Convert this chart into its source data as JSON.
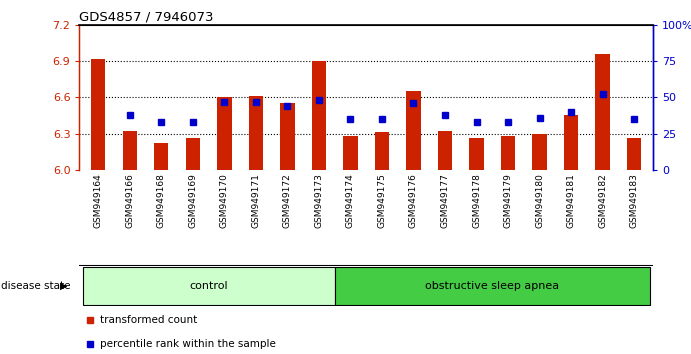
{
  "title": "GDS4857 / 7946073",
  "samples": [
    "GSM949164",
    "GSM949166",
    "GSM949168",
    "GSM949169",
    "GSM949170",
    "GSM949171",
    "GSM949172",
    "GSM949173",
    "GSM949174",
    "GSM949175",
    "GSM949176",
    "GSM949177",
    "GSM949178",
    "GSM949179",
    "GSM949180",
    "GSM949181",
    "GSM949182",
    "GSM949183"
  ],
  "bar_values": [
    6.92,
    6.32,
    6.22,
    6.26,
    6.6,
    6.61,
    6.55,
    6.9,
    6.28,
    6.31,
    6.65,
    6.32,
    6.26,
    6.28,
    6.3,
    6.45,
    6.96,
    6.26
  ],
  "percentile_pct": [
    null,
    38,
    33,
    33,
    47,
    47,
    44,
    48,
    35,
    35,
    46,
    38,
    33,
    33,
    36,
    40,
    52,
    35
  ],
  "ylim": [
    6.0,
    7.2
  ],
  "yticks_left": [
    6.0,
    6.3,
    6.6,
    6.9,
    7.2
  ],
  "yticks_right": [
    0,
    25,
    50,
    75,
    100
  ],
  "bar_color": "#cc2200",
  "square_color": "#0000cc",
  "groups": [
    {
      "label": "control",
      "start": 0,
      "end": 8,
      "color": "#ccffcc"
    },
    {
      "label": "obstructive sleep apnea",
      "start": 8,
      "end": 18,
      "color": "#44cc44"
    }
  ],
  "legend": [
    {
      "label": "transformed count",
      "color": "#cc2200"
    },
    {
      "label": "percentile rank within the sample",
      "color": "#0000cc"
    }
  ],
  "ticklabel_bg": "#d0d0d0",
  "disease_state_label": "disease state"
}
